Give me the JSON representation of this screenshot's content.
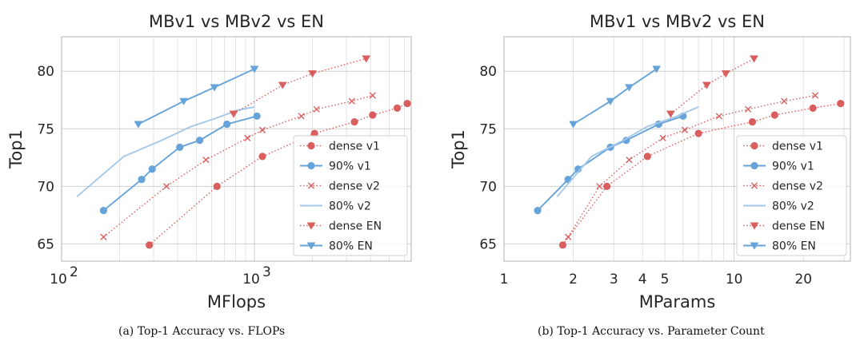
{
  "chart_data": [
    {
      "type": "line",
      "title": "MBv1 vs MBv2 vs EN",
      "xlabel": "MFlops",
      "ylabel": "Top1",
      "xscale": "log",
      "xlim": [
        100,
        6500
      ],
      "ylim": [
        63.5,
        83
      ],
      "yticks": [
        65,
        70,
        75,
        80
      ],
      "xticks": [
        {
          "v": 100,
          "base": "10",
          "exp": "2"
        },
        {
          "v": 1000,
          "base": "10",
          "exp": "3"
        }
      ],
      "grid": true,
      "legend_position": "center-right",
      "caption": "(a) Top-1 Accuracy vs. FLOPs",
      "series": [
        {
          "name": "dense v1",
          "color": "#d95f5f",
          "dash": "dotted",
          "marker": "circle",
          "x": [
            285,
            640,
            1100,
            2050,
            3300,
            4100,
            5500,
            6200
          ],
          "y": [
            64.9,
            70.0,
            72.6,
            74.6,
            75.6,
            76.2,
            76.8,
            77.2
          ]
        },
        {
          "name": "90% v1",
          "color": "#66a3d9",
          "dash": "solid",
          "marker": "circle",
          "x": [
            165,
            260,
            295,
            410,
            520,
            720,
            1030
          ],
          "y": [
            67.9,
            70.6,
            71.5,
            73.4,
            74.0,
            75.4,
            76.1
          ]
        },
        {
          "name": "dense v2",
          "color": "#d95f5f",
          "dash": "dotted",
          "marker": "x",
          "x": [
            165,
            350,
            560,
            920,
            1100,
            1750,
            2100,
            3200,
            4100
          ],
          "y": [
            65.6,
            70.0,
            72.3,
            74.2,
            74.9,
            76.1,
            76.7,
            77.4,
            77.9
          ]
        },
        {
          "name": "80% v2",
          "color": "#a4c8e8",
          "dash": "solid",
          "marker": "none",
          "x": [
            120,
            210,
            330,
            470,
            650,
            810,
            1000
          ],
          "y": [
            69.1,
            72.6,
            74.0,
            75.2,
            76.0,
            76.6,
            76.9
          ]
        },
        {
          "name": "dense EN",
          "color": "#d95f5f",
          "dash": "dotted",
          "marker": "triangle-down",
          "x": [
            780,
            1400,
            2000,
            3800
          ],
          "y": [
            76.3,
            78.8,
            79.8,
            81.1
          ]
        },
        {
          "name": "80% EN",
          "color": "#66a3d9",
          "dash": "solid",
          "marker": "triangle-down",
          "x": [
            250,
            430,
            620,
            1000
          ],
          "y": [
            75.4,
            77.4,
            78.6,
            80.2
          ]
        }
      ]
    },
    {
      "type": "line",
      "title": "MBv1 vs MBv2 vs EN",
      "xlabel": "MParams",
      "ylabel": "Top1",
      "xscale": "log",
      "xlim": [
        1,
        32
      ],
      "ylim": [
        63.5,
        83
      ],
      "yticks": [
        65,
        70,
        75,
        80
      ],
      "xticks": [
        {
          "v": 1,
          "label": "1"
        },
        {
          "v": 2,
          "label": "2"
        },
        {
          "v": 3,
          "label": "3"
        },
        {
          "v": 4,
          "label": "4"
        },
        {
          "v": 5,
          "label": "5"
        },
        {
          "v": 10,
          "label": "10"
        },
        {
          "v": 20,
          "label": "20"
        }
      ],
      "grid": true,
      "legend_position": "lower-right",
      "caption": "(b) Top-1 Accuracy vs. Parameter Count",
      "series": [
        {
          "name": "dense v1",
          "color": "#d95f5f",
          "dash": "dotted",
          "marker": "circle",
          "x": [
            1.8,
            2.8,
            4.2,
            7.0,
            12.0,
            15.0,
            22.0,
            29.0
          ],
          "y": [
            64.9,
            70.0,
            72.6,
            74.6,
            75.6,
            76.2,
            76.8,
            77.2
          ]
        },
        {
          "name": "90% v1",
          "color": "#66a3d9",
          "dash": "solid",
          "marker": "circle",
          "x": [
            1.4,
            1.9,
            2.1,
            2.9,
            3.4,
            4.7,
            6.0
          ],
          "y": [
            67.9,
            70.6,
            71.5,
            73.4,
            74.0,
            75.4,
            76.1
          ]
        },
        {
          "name": "dense v2",
          "color": "#d95f5f",
          "dash": "dotted",
          "marker": "x",
          "x": [
            1.9,
            2.6,
            3.5,
            4.9,
            6.1,
            8.6,
            11.5,
            16.5,
            22.5
          ],
          "y": [
            65.6,
            70.0,
            72.3,
            74.2,
            74.9,
            76.1,
            76.7,
            77.4,
            77.9
          ]
        },
        {
          "name": "80% v2",
          "color": "#a4c8e8",
          "dash": "solid",
          "marker": "none",
          "x": [
            1.7,
            2.4,
            3.3,
            4.2,
            5.5,
            7.0
          ],
          "y": [
            69.1,
            72.6,
            74.0,
            75.2,
            76.0,
            76.9
          ]
        },
        {
          "name": "dense EN",
          "color": "#d95f5f",
          "dash": "dotted",
          "marker": "triangle-down",
          "x": [
            5.3,
            7.6,
            9.2,
            12.2
          ],
          "y": [
            76.3,
            78.8,
            79.8,
            81.1
          ]
        },
        {
          "name": "80% EN",
          "color": "#66a3d9",
          "dash": "solid",
          "marker": "triangle-down",
          "x": [
            2.0,
            2.9,
            3.5,
            4.6
          ],
          "y": [
            75.4,
            77.4,
            78.6,
            80.2
          ]
        }
      ]
    }
  ]
}
